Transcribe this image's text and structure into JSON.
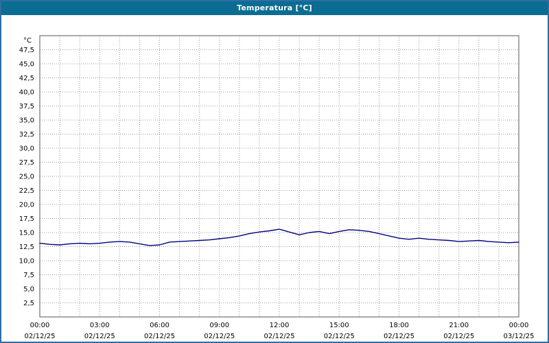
{
  "title": "Temperatura [°C]",
  "colors": {
    "titlebar": "#0a6d91",
    "frame_border": "#2e6da4",
    "plot_border": "#555555",
    "grid": "#9a9a9a",
    "line": "#000080",
    "text": "#000000",
    "background": "#ffffff"
  },
  "y_axis": {
    "unit_label": "°C",
    "tick_values": [
      2.5,
      5,
      7.5,
      10,
      12.5,
      15,
      17.5,
      20,
      22.5,
      25,
      27.5,
      30,
      32.5,
      35,
      37.5,
      40,
      42.5,
      45,
      47.5
    ],
    "tick_labels": [
      "2,5",
      "5,0",
      "7,5",
      "10,0",
      "12,5",
      "15,0",
      "17,5",
      "20,0",
      "22,5",
      "25,0",
      "27,5",
      "30,0",
      "32,5",
      "35,0",
      "37,5",
      "40,0",
      "42,5",
      "45,0",
      "47,5"
    ]
  },
  "x_axis": {
    "ticks": [
      {
        "h": 0,
        "time": "00:00",
        "date": "02/12/25"
      },
      {
        "h": 3,
        "time": "03:00",
        "date": "02/12/25"
      },
      {
        "h": 6,
        "time": "06:00",
        "date": "02/12/25"
      },
      {
        "h": 9,
        "time": "09:00",
        "date": "02/12/25"
      },
      {
        "h": 12,
        "time": "12:00",
        "date": "02/12/25"
      },
      {
        "h": 15,
        "time": "15:00",
        "date": "02/12/25"
      },
      {
        "h": 18,
        "time": "18:00",
        "date": "02/12/25"
      },
      {
        "h": 21,
        "time": "21:00",
        "date": "02/12/25"
      },
      {
        "h": 24,
        "time": "00:00",
        "date": "03/12/25"
      }
    ]
  },
  "chart_data": {
    "type": "line",
    "title": "Temperatura [°C]",
    "xlabel": "",
    "ylabel": "°C",
    "xlim": [
      0,
      24
    ],
    "ylim": [
      0,
      50
    ],
    "grid": "dotted",
    "legend_position": "none",
    "series": [
      {
        "name": "Temperatura",
        "x": [
          0,
          0.5,
          1,
          1.5,
          2,
          2.5,
          3,
          3.5,
          4,
          4.5,
          5,
          5.5,
          6,
          6.5,
          7,
          7.5,
          8,
          8.5,
          9,
          9.5,
          10,
          10.5,
          11,
          11.5,
          12,
          12.5,
          13,
          13.5,
          14,
          14.5,
          15,
          15.5,
          16,
          16.5,
          17,
          17.5,
          18,
          18.5,
          19,
          19.5,
          20,
          20.5,
          21,
          21.5,
          22,
          22.5,
          23,
          23.5,
          24
        ],
        "values": [
          13.1,
          12.9,
          12.8,
          13.0,
          13.1,
          13.0,
          13.1,
          13.3,
          13.4,
          13.3,
          13.0,
          12.7,
          12.8,
          13.3,
          13.4,
          13.5,
          13.6,
          13.7,
          13.9,
          14.1,
          14.4,
          14.8,
          15.1,
          15.3,
          15.6,
          15.1,
          14.6,
          15.0,
          15.2,
          14.8,
          15.2,
          15.5,
          15.4,
          15.2,
          14.8,
          14.4,
          14.0,
          13.8,
          14.0,
          13.8,
          13.7,
          13.6,
          13.4,
          13.5,
          13.6,
          13.4,
          13.3,
          13.2,
          13.3
        ]
      }
    ]
  }
}
